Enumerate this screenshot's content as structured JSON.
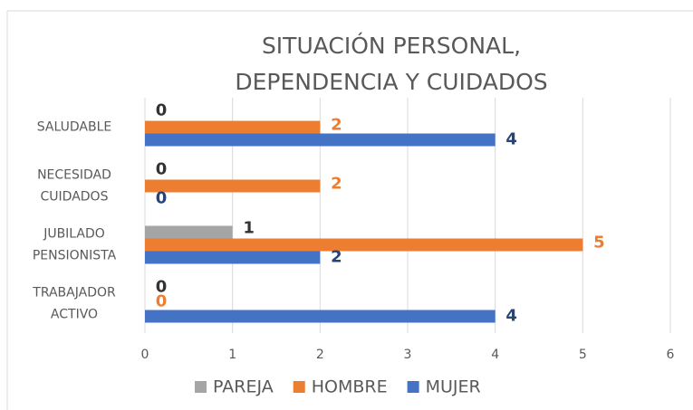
{
  "chart_data": {
    "type": "barh",
    "title": [
      "SITUACIÓN PERSONAL,",
      "DEPENDENCIA Y CUIDADOS"
    ],
    "categories": [
      "SALUDABLE",
      "NECESIDAD CUIDADOS",
      "JUBILADO PENSIONISTA",
      "TRABAJADOR ACTIVO"
    ],
    "series": [
      {
        "name": "PAREJA",
        "color": "#a5a5a5",
        "label_color": "#333333",
        "values": [
          0,
          0,
          1,
          0
        ]
      },
      {
        "name": "HOMBRE",
        "color": "#ed7d31",
        "label_color": "#ed7d31",
        "values": [
          2,
          2,
          5,
          0
        ]
      },
      {
        "name": "MUJER",
        "color": "#4472c4",
        "label_color": "#264478",
        "values": [
          4,
          0,
          2,
          4
        ]
      }
    ],
    "xlim": [
      0,
      6
    ],
    "xticks": [
      0,
      1,
      2,
      3,
      4,
      5,
      6
    ],
    "grid": true,
    "legend": "bottom"
  }
}
